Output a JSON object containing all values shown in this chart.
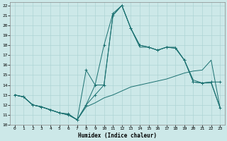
{
  "xlabel": "Humidex (Indice chaleur)",
  "bg_color": "#cce8e8",
  "line_color": "#1a7070",
  "grid_color": "#aed4d4",
  "xlim": [
    -0.5,
    23.5
  ],
  "ylim": [
    10,
    22.3
  ],
  "yticks": [
    10,
    11,
    12,
    13,
    14,
    15,
    16,
    17,
    18,
    19,
    20,
    21,
    22
  ],
  "xticks": [
    0,
    1,
    2,
    3,
    4,
    5,
    6,
    7,
    8,
    9,
    10,
    11,
    12,
    13,
    14,
    15,
    16,
    17,
    18,
    19,
    20,
    21,
    22,
    23
  ],
  "lines": [
    {
      "x": [
        0,
        1,
        2,
        3,
        4,
        5,
        6,
        7,
        8,
        9,
        10,
        11,
        12,
        13,
        14,
        15,
        16,
        17,
        18,
        19,
        20,
        21,
        22,
        23
      ],
      "y": [
        13,
        12.8,
        12.0,
        11.8,
        11.5,
        11.2,
        11.1,
        10.5,
        15.5,
        14.0,
        18.0,
        21.2,
        22.0,
        19.7,
        18.0,
        17.8,
        17.5,
        17.8,
        17.7,
        16.5,
        14.3,
        14.2,
        14.3,
        14.3
      ],
      "marker": "+"
    },
    {
      "x": [
        0,
        1,
        2,
        3,
        4,
        5,
        6,
        7,
        8,
        9,
        10,
        11,
        12,
        13,
        14,
        15,
        16,
        17,
        18,
        19,
        20,
        21,
        22,
        23
      ],
      "y": [
        13,
        12.8,
        12.0,
        11.8,
        11.5,
        11.2,
        11.0,
        10.5,
        12.0,
        14.0,
        14.0,
        21.0,
        22.0,
        19.7,
        17.8,
        17.8,
        17.5,
        17.8,
        17.8,
        16.5,
        14.5,
        14.2,
        14.2,
        11.7
      ],
      "marker": null
    },
    {
      "x": [
        0,
        1,
        2,
        3,
        4,
        5,
        6,
        7,
        8,
        9,
        10,
        11,
        12,
        13,
        14,
        15,
        16,
        17,
        18,
        19,
        20,
        21,
        22,
        23
      ],
      "y": [
        13,
        12.8,
        12.0,
        11.8,
        11.5,
        11.2,
        11.0,
        10.5,
        11.8,
        12.2,
        12.7,
        13.0,
        13.4,
        13.8,
        14.0,
        14.2,
        14.4,
        14.6,
        14.9,
        15.2,
        15.4,
        15.5,
        16.5,
        11.7
      ],
      "marker": null
    },
    {
      "x": [
        0,
        1,
        2,
        3,
        4,
        5,
        6,
        7,
        8,
        9,
        10,
        11,
        12,
        13,
        14,
        15,
        16,
        17,
        18,
        19,
        20,
        21,
        22,
        23
      ],
      "y": [
        13,
        12.8,
        12.0,
        11.8,
        11.5,
        11.2,
        11.0,
        10.5,
        12.0,
        13.0,
        14.0,
        21.0,
        22.0,
        19.7,
        18.0,
        17.8,
        17.5,
        17.8,
        17.7,
        16.5,
        14.3,
        14.2,
        14.3,
        11.7
      ],
      "marker": "+"
    }
  ]
}
